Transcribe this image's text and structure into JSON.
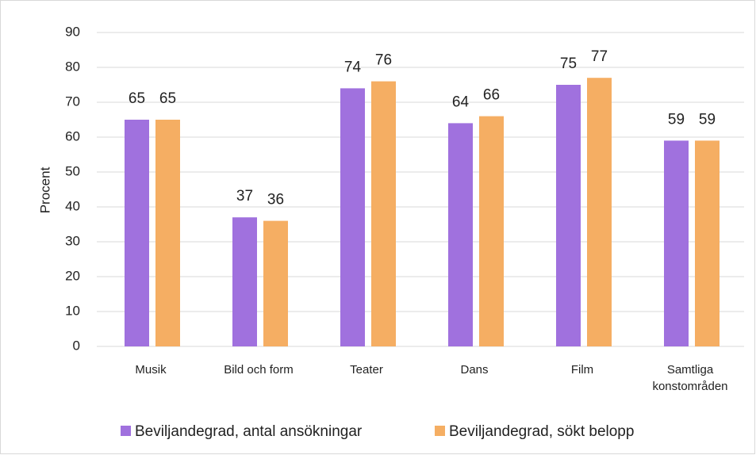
{
  "chart_data": {
    "type": "bar",
    "y_label": "Procent",
    "categories": [
      "Musik",
      "Bild och form",
      "Teater",
      "Dans",
      "Film",
      "Samtliga\nkonstområden"
    ],
    "series": [
      {
        "name": "Beviljandegrad, antal ansökningar",
        "color": "#a071de",
        "values": [
          65,
          37,
          74,
          64,
          75,
          59
        ]
      },
      {
        "name": "Beviljandegrad, sökt belopp",
        "color": "#f5ae63",
        "values": [
          65,
          36,
          76,
          66,
          77,
          59
        ]
      }
    ],
    "ylim": [
      0,
      90
    ],
    "yticks": [
      0,
      10,
      20,
      30,
      40,
      50,
      60,
      70,
      80,
      90
    ],
    "grid": true,
    "legend": "bottom"
  }
}
